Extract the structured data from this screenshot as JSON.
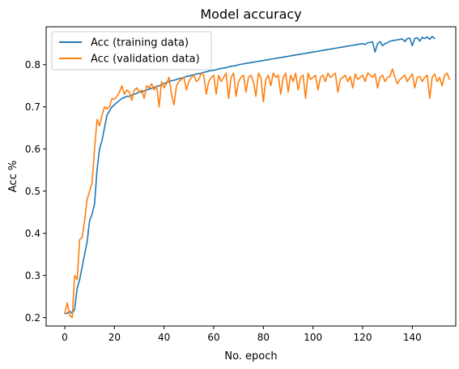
{
  "chart_data": {
    "type": "line",
    "title": "Model accuracy",
    "xlabel": "No. epoch",
    "ylabel": "Acc %",
    "xlim": [
      -7.5,
      157.5
    ],
    "ylim": [
      0.18,
      0.89
    ],
    "xticks": [
      0,
      20,
      40,
      60,
      80,
      100,
      120,
      140
    ],
    "yticks": [
      0.2,
      0.3,
      0.4,
      0.5,
      0.6,
      0.7,
      0.8
    ],
    "xtick_labels": [
      "0",
      "20",
      "40",
      "60",
      "80",
      "100",
      "120",
      "140"
    ],
    "ytick_labels": [
      "0.2",
      "0.3",
      "0.4",
      "0.5",
      "0.6",
      "0.7",
      "0.8"
    ],
    "legend_position": "top-left",
    "series": [
      {
        "name": "Acc (training data)",
        "color": "#1f77b4",
        "values": [
          0.21,
          0.21,
          0.215,
          0.21,
          0.22,
          0.27,
          0.29,
          0.32,
          0.35,
          0.38,
          0.43,
          0.445,
          0.47,
          0.55,
          0.6,
          0.62,
          0.65,
          0.68,
          0.69,
          0.7,
          0.705,
          0.71,
          0.715,
          0.72,
          0.722,
          0.725,
          0.725,
          0.728,
          0.73,
          0.732,
          0.735,
          0.735,
          0.738,
          0.74,
          0.742,
          0.744,
          0.746,
          0.748,
          0.75,
          0.752,
          0.755,
          0.758,
          0.76,
          0.762,
          0.763,
          0.765,
          0.767,
          0.768,
          0.77,
          0.772,
          0.773,
          0.775,
          0.776,
          0.778,
          0.779,
          0.78,
          0.782,
          0.783,
          0.785,
          0.786,
          0.787,
          0.788,
          0.79,
          0.791,
          0.792,
          0.793,
          0.795,
          0.796,
          0.797,
          0.798,
          0.8,
          0.801,
          0.802,
          0.803,
          0.804,
          0.805,
          0.806,
          0.807,
          0.808,
          0.809,
          0.81,
          0.811,
          0.812,
          0.813,
          0.814,
          0.815,
          0.816,
          0.817,
          0.818,
          0.819,
          0.82,
          0.821,
          0.822,
          0.823,
          0.824,
          0.825,
          0.826,
          0.827,
          0.828,
          0.829,
          0.83,
          0.831,
          0.832,
          0.833,
          0.834,
          0.835,
          0.836,
          0.837,
          0.838,
          0.839,
          0.84,
          0.841,
          0.842,
          0.843,
          0.844,
          0.845,
          0.846,
          0.847,
          0.848,
          0.849,
          0.85,
          0.848,
          0.852,
          0.853,
          0.854,
          0.83,
          0.85,
          0.855,
          0.845,
          0.85,
          0.852,
          0.856,
          0.857,
          0.858,
          0.859,
          0.86,
          0.861,
          0.855,
          0.862,
          0.863,
          0.845,
          0.862,
          0.864,
          0.856,
          0.865,
          0.862,
          0.866,
          0.86,
          0.867,
          0.862
        ]
      },
      {
        "name": "Acc (validation data)",
        "color": "#ff7f0e",
        "values": [
          0.21,
          0.235,
          0.205,
          0.2,
          0.3,
          0.29,
          0.385,
          0.39,
          0.43,
          0.48,
          0.5,
          0.52,
          0.6,
          0.67,
          0.655,
          0.68,
          0.7,
          0.695,
          0.7,
          0.72,
          0.718,
          0.725,
          0.735,
          0.75,
          0.73,
          0.74,
          0.735,
          0.715,
          0.74,
          0.745,
          0.735,
          0.74,
          0.72,
          0.75,
          0.745,
          0.755,
          0.74,
          0.75,
          0.7,
          0.76,
          0.745,
          0.755,
          0.77,
          0.73,
          0.705,
          0.75,
          0.76,
          0.765,
          0.77,
          0.74,
          0.76,
          0.77,
          0.775,
          0.76,
          0.765,
          0.78,
          0.775,
          0.73,
          0.76,
          0.77,
          0.775,
          0.73,
          0.775,
          0.76,
          0.77,
          0.78,
          0.72,
          0.77,
          0.78,
          0.725,
          0.76,
          0.77,
          0.775,
          0.735,
          0.77,
          0.775,
          0.76,
          0.725,
          0.78,
          0.77,
          0.712,
          0.765,
          0.775,
          0.75,
          0.78,
          0.77,
          0.775,
          0.73,
          0.77,
          0.78,
          0.735,
          0.775,
          0.76,
          0.78,
          0.74,
          0.77,
          0.775,
          0.72,
          0.78,
          0.765,
          0.77,
          0.775,
          0.74,
          0.77,
          0.775,
          0.76,
          0.78,
          0.77,
          0.775,
          0.78,
          0.735,
          0.765,
          0.77,
          0.775,
          0.76,
          0.772,
          0.745,
          0.778,
          0.765,
          0.77,
          0.775,
          0.76,
          0.78,
          0.775,
          0.77,
          0.778,
          0.745,
          0.77,
          0.775,
          0.76,
          0.77,
          0.772,
          0.79,
          0.77,
          0.755,
          0.765,
          0.77,
          0.775,
          0.76,
          0.77,
          0.778,
          0.745,
          0.77,
          0.772,
          0.76,
          0.77,
          0.775,
          0.72,
          0.77,
          0.778,
          0.76,
          0.77,
          0.75,
          0.775,
          0.78,
          0.765
        ]
      }
    ]
  }
}
